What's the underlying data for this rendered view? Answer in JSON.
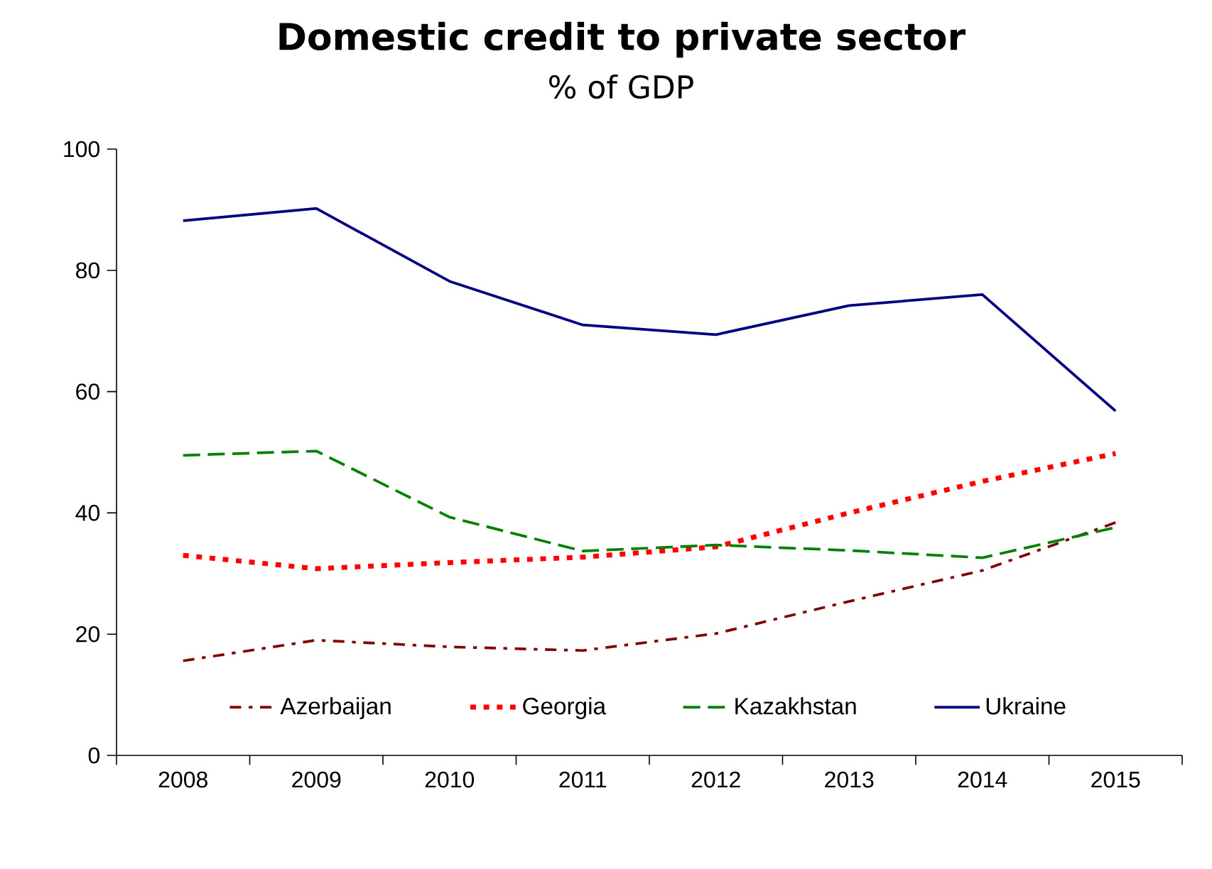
{
  "chart_data": {
    "type": "line",
    "title": "Domestic credit to private sector",
    "subtitle": "% of GDP",
    "categories": [
      "2008",
      "2009",
      "2010",
      "2011",
      "2012",
      "2013",
      "2014",
      "2015"
    ],
    "series": [
      {
        "name": "Azerbaijan",
        "color": "#800000",
        "line_style": "dashdot",
        "values": [
          15.6,
          19.0,
          17.9,
          17.3,
          20.1,
          25.4,
          30.5,
          38.4
        ]
      },
      {
        "name": "Georgia",
        "color": "#ff0000",
        "line_style": "dotted",
        "values": [
          33.0,
          30.8,
          31.8,
          32.7,
          34.4,
          40.0,
          45.2,
          49.8
        ]
      },
      {
        "name": "Kazakhstan",
        "color": "#008000",
        "line_style": "dashed",
        "values": [
          49.5,
          50.2,
          39.3,
          33.7,
          34.7,
          33.8,
          32.6,
          37.6
        ]
      },
      {
        "name": "Ukraine",
        "color": "#000080",
        "line_style": "solid",
        "values": [
          88.2,
          90.2,
          78.2,
          71.0,
          69.4,
          74.2,
          76.0,
          56.8
        ]
      }
    ],
    "ylim": [
      0,
      100
    ],
    "yticks": [
      0,
      20,
      40,
      60,
      80,
      100
    ],
    "grid": false,
    "legend": "bottom",
    "marker": "none"
  }
}
